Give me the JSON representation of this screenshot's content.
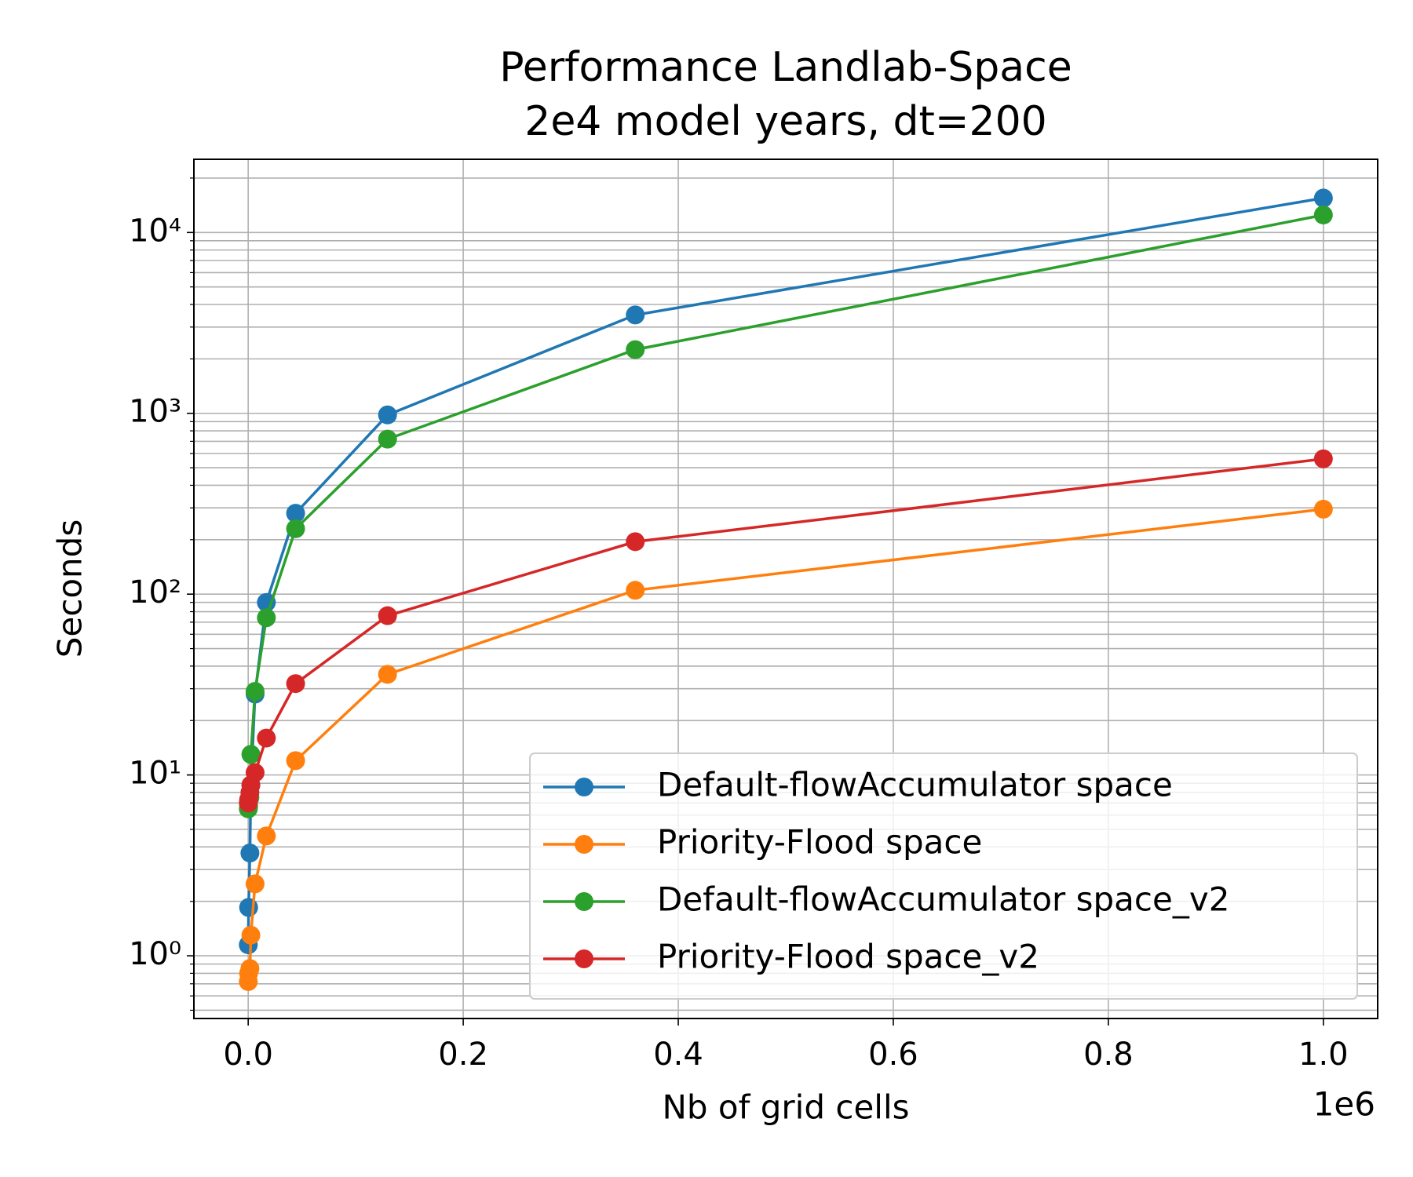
{
  "chart_data": {
    "type": "line",
    "title": "Performance Landlab-Space",
    "subtitle": "2e4 model years, dt=200",
    "x_label": "Nb of grid cells",
    "y_label": "Seconds",
    "x_offset_label": "1e6",
    "x": [
      100,
      400,
      1600,
      2500,
      6400,
      16900,
      44100,
      129600,
      360000,
      1000000
    ],
    "series": [
      {
        "name": "Default-flowAccumulator space",
        "color": "#1f77b4",
        "values": [
          1.15,
          1.85,
          3.7,
          8.8,
          28,
          90,
          280,
          980,
          3500,
          15500
        ]
      },
      {
        "name": "Priority-Flood space",
        "color": "#ff7f0e",
        "values": [
          0.72,
          0.8,
          0.85,
          1.3,
          2.5,
          4.6,
          12,
          36,
          105,
          295
        ]
      },
      {
        "name": "Default-flowAccumulator space_v2",
        "color": "#2ca02c",
        "values": [
          6.5,
          6.7,
          7.5,
          13,
          29,
          74,
          230,
          720,
          2250,
          12500
        ]
      },
      {
        "name": "Priority-Flood space_v2",
        "color": "#d62728",
        "values": [
          7,
          7.3,
          8,
          8.8,
          10.3,
          16,
          32,
          76,
          195,
          560
        ]
      }
    ],
    "xlim": [
      -50500,
      1050500
    ],
    "ylim": [
      0.45,
      25400
    ],
    "xticks": [
      {
        "value": 0,
        "label": "0.0"
      },
      {
        "value": 200000,
        "label": "0.2"
      },
      {
        "value": 400000,
        "label": "0.4"
      },
      {
        "value": 600000,
        "label": "0.6"
      },
      {
        "value": 800000,
        "label": "0.8"
      },
      {
        "value": 1000000,
        "label": "1.0"
      }
    ],
    "yticks": [
      {
        "value": 1,
        "label": "10⁰"
      },
      {
        "value": 10,
        "label": "10¹"
      },
      {
        "value": 100,
        "label": "10²"
      },
      {
        "value": 1000,
        "label": "10³"
      },
      {
        "value": 10000,
        "label": "10⁴"
      }
    ],
    "ylog": true,
    "grid": "both",
    "legend": "lower right"
  }
}
